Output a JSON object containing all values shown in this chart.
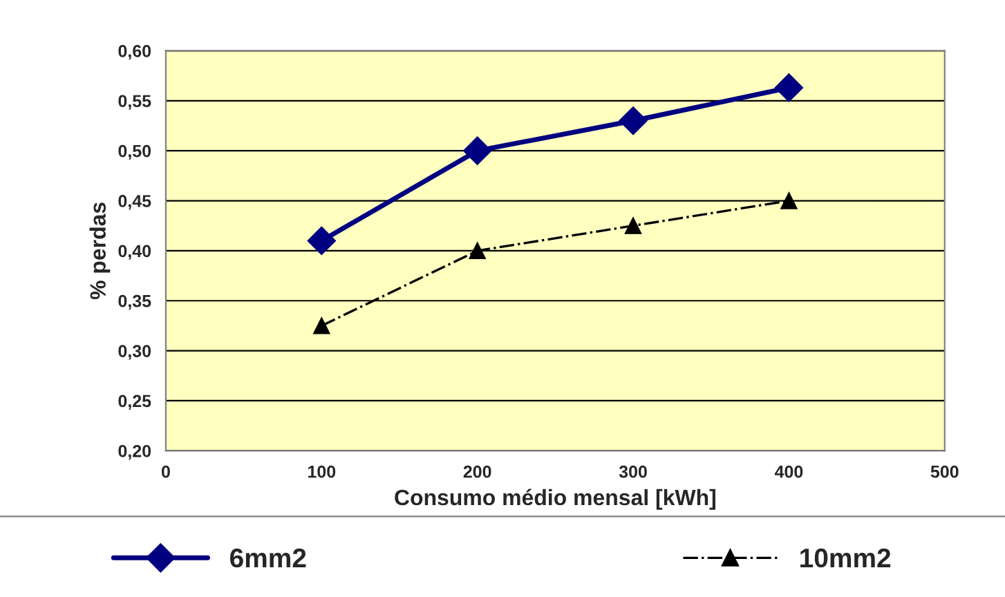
{
  "chart_data": {
    "type": "line",
    "xlabel": "Consumo médio mensal [kWh]",
    "ylabel": "% perdas",
    "x": [
      100,
      200,
      300,
      400
    ],
    "series": [
      {
        "name": "6mm2",
        "color": "#000080",
        "values": [
          0.41,
          0.5,
          0.53,
          0.563
        ],
        "marker": "diamond",
        "line_style": "solid"
      },
      {
        "name": "10mm2",
        "color": "#000000",
        "values": [
          0.325,
          0.4,
          0.425,
          0.45
        ],
        "marker": "triangle",
        "line_style": "dashed"
      }
    ],
    "xlim": [
      0,
      500
    ],
    "xticks": [
      0,
      100,
      200,
      300,
      400,
      500
    ],
    "ylim": [
      0.2,
      0.6
    ],
    "yticks": [
      {
        "value": 0.2,
        "label": "0,20"
      },
      {
        "value": 0.25,
        "label": "0,25"
      },
      {
        "value": 0.3,
        "label": "0,30"
      },
      {
        "value": 0.35,
        "label": "0,35"
      },
      {
        "value": 0.4,
        "label": "0,40"
      },
      {
        "value": 0.45,
        "label": "0,45"
      },
      {
        "value": 0.5,
        "label": "0,50"
      },
      {
        "value": 0.55,
        "label": "0,55"
      },
      {
        "value": 0.6,
        "label": "0,60"
      }
    ],
    "grid": "y",
    "legend": "bottom"
  }
}
